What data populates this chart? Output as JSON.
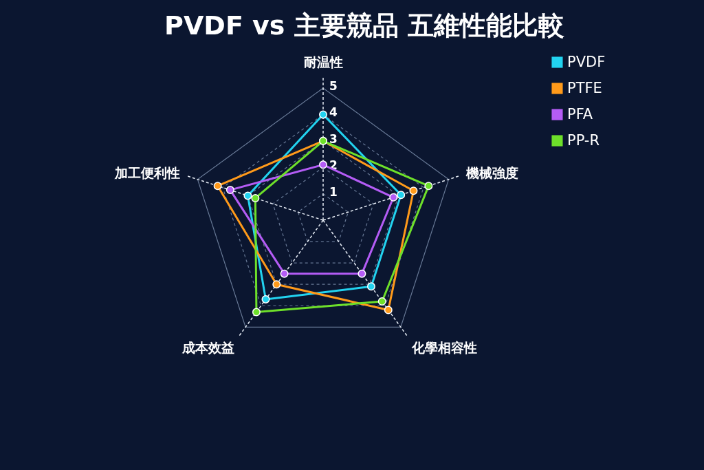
{
  "chart_data": {
    "type": "radar",
    "title": "PVDF vs 主要競品 五維性能比較",
    "categories": [
      "耐温性",
      "機械強度",
      "化學相容性",
      "成本效益",
      "加工便利性"
    ],
    "series": [
      {
        "name": "PVDF",
        "color": "#22d3f0",
        "values": [
          4.0,
          3.1,
          3.1,
          3.7,
          3.0
        ]
      },
      {
        "name": "PTFE",
        "color": "#ff9a1a",
        "values": [
          3.0,
          3.6,
          4.2,
          3.0,
          4.2
        ]
      },
      {
        "name": "PFA",
        "color": "#b45cf5",
        "values": [
          2.1,
          2.8,
          2.5,
          2.5,
          3.7
        ]
      },
      {
        "name": "PP-R",
        "color": "#6ee02a",
        "values": [
          3.0,
          4.2,
          3.8,
          4.3,
          2.7
        ]
      }
    ],
    "ylim": [
      0,
      5
    ],
    "yticks": [
      1,
      2,
      3,
      4,
      5
    ],
    "grid": true,
    "legend": "right",
    "marker": "circle",
    "line_style": "solid"
  }
}
